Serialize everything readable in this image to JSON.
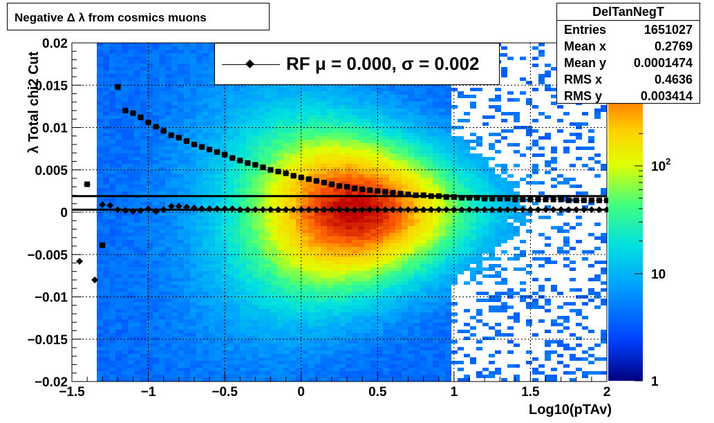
{
  "chart_data": {
    "type": "heatmap",
    "title": "Negative Δ λ from cosmics muons",
    "xlabel": "Log10(pTAv)",
    "ylabel": "λ  Total chi2 Cut",
    "xlim": [
      -1.5,
      2
    ],
    "ylim": [
      -0.02,
      0.02
    ],
    "x_ticks": [
      "−1.5",
      "−1",
      "−0.5",
      "0",
      "0.5",
      "1",
      "1.5",
      "2"
    ],
    "y_ticks": [
      "0.02",
      "0.015",
      "0.01",
      "0.005",
      "0",
      "−0.005",
      "−0.01",
      "−0.015",
      "−0.02"
    ],
    "z_scale": "log",
    "z_ticks": [
      "1",
      "10",
      "10^2"
    ],
    "grid": true,
    "stats": {
      "name": "DelTanNegT",
      "rows": [
        {
          "label": "Entries",
          "value": "1651027"
        },
        {
          "label": "Mean x",
          "value": "0.2769"
        },
        {
          "label": "Mean y",
          "value": "0.0001474"
        },
        {
          "label": "RMS x",
          "value": "0.4636"
        },
        {
          "label": "RMS y",
          "value": "0.003414"
        }
      ]
    },
    "legend": {
      "label": "RF μ =  0.000, σ =   0.002",
      "placement": "top-center"
    },
    "series": [
      {
        "marker": "diamond",
        "x": [
          -1.45,
          -1.35,
          -1.3,
          -1.25,
          -1.2,
          -1.15,
          -1.1,
          -1.05,
          -1.0,
          -0.95,
          -0.9,
          -0.85,
          -0.8,
          -0.75,
          -0.7,
          -0.65,
          -0.6,
          -0.55,
          -0.5,
          -0.45,
          -0.4,
          -0.35,
          -0.3,
          -0.25,
          -0.2,
          -0.15,
          -0.1,
          -0.05,
          0.0,
          0.05,
          0.1,
          0.15,
          0.2,
          0.25,
          0.3,
          0.35,
          0.4,
          0.45,
          0.5,
          0.55,
          0.6,
          0.65,
          0.7,
          0.75,
          0.8,
          0.85,
          0.9,
          0.95,
          1.0,
          1.05,
          1.1,
          1.15,
          1.2,
          1.25,
          1.3,
          1.35,
          1.4,
          1.45,
          1.5,
          1.55,
          1.6,
          1.65,
          1.7,
          1.75,
          1.8,
          1.85,
          1.9,
          1.95,
          2.0
        ],
        "y": [
          -0.0058,
          -0.008,
          0.0009,
          0.0008,
          0.0003,
          0.0002,
          0.0001,
          0.0002,
          0.0004,
          0.0001,
          0.0003,
          0.0007,
          0.0007,
          0.0006,
          0.0005,
          0.0004,
          0.0004,
          0.0004,
          0.0004,
          0.0004,
          0.0003,
          0.0003,
          0.0003,
          0.0003,
          0.0003,
          0.0003,
          0.0003,
          0.0003,
          0.0003,
          0.0003,
          0.0003,
          0.0003,
          0.0003,
          0.0003,
          0.0003,
          0.0003,
          0.0003,
          0.0003,
          0.0003,
          0.0003,
          0.0003,
          0.0003,
          0.0003,
          0.0003,
          0.0003,
          0.0003,
          0.0003,
          0.0003,
          0.0003,
          0.0003,
          0.0003,
          0.0003,
          0.0003,
          0.0003,
          0.0003,
          0.0003,
          0.0003,
          0.0003,
          0.0003,
          0.0003,
          0.0003,
          0.0003,
          0.0003,
          0.0003,
          0.0003,
          0.0003,
          0.0003,
          0.0003,
          0.0003
        ]
      },
      {
        "marker": "square",
        "x": [
          -1.4,
          -1.3,
          -1.2,
          -1.15,
          -1.1,
          -1.05,
          -1.0,
          -0.95,
          -0.9,
          -0.85,
          -0.8,
          -0.75,
          -0.7,
          -0.65,
          -0.6,
          -0.55,
          -0.5,
          -0.45,
          -0.4,
          -0.35,
          -0.3,
          -0.25,
          -0.2,
          -0.15,
          -0.1,
          -0.05,
          0.0,
          0.05,
          0.1,
          0.15,
          0.2,
          0.25,
          0.3,
          0.35,
          0.4,
          0.45,
          0.5,
          0.55,
          0.6,
          0.65,
          0.7,
          0.75,
          0.8,
          0.85,
          0.9,
          0.95,
          1.0,
          1.05,
          1.1,
          1.15,
          1.2,
          1.25,
          1.3,
          1.35,
          1.4,
          1.45,
          1.5,
          1.55,
          1.6,
          1.65,
          1.7,
          1.75,
          1.8,
          1.85,
          1.9,
          1.95,
          2.0
        ],
        "y": [
          0.0033,
          -0.0039,
          0.0148,
          0.012,
          0.0117,
          0.0112,
          0.0106,
          0.0101,
          0.0096,
          0.0091,
          0.0088,
          0.0084,
          0.008,
          0.0077,
          0.0074,
          0.0071,
          0.0068,
          0.0064,
          0.0061,
          0.0058,
          0.0056,
          0.0053,
          0.005,
          0.0048,
          0.0046,
          0.0043,
          0.0041,
          0.0039,
          0.0037,
          0.0035,
          0.0033,
          0.0031,
          0.003,
          0.0028,
          0.0027,
          0.0026,
          0.0025,
          0.0024,
          0.0023,
          0.0022,
          0.0021,
          0.002,
          0.002,
          0.0019,
          0.0019,
          0.0018,
          0.0018,
          0.0017,
          0.0017,
          0.0017,
          0.0016,
          0.0016,
          0.0016,
          0.0016,
          0.0015,
          0.0015,
          0.0015,
          0.0015,
          0.0015,
          0.0015,
          0.0015,
          0.0014,
          0.0014,
          0.0014,
          0.0014,
          0.0014,
          0.0014
        ]
      }
    ],
    "fit_lines": [
      {
        "y": 0.0003
      },
      {
        "y": 0.0019
      }
    ]
  }
}
